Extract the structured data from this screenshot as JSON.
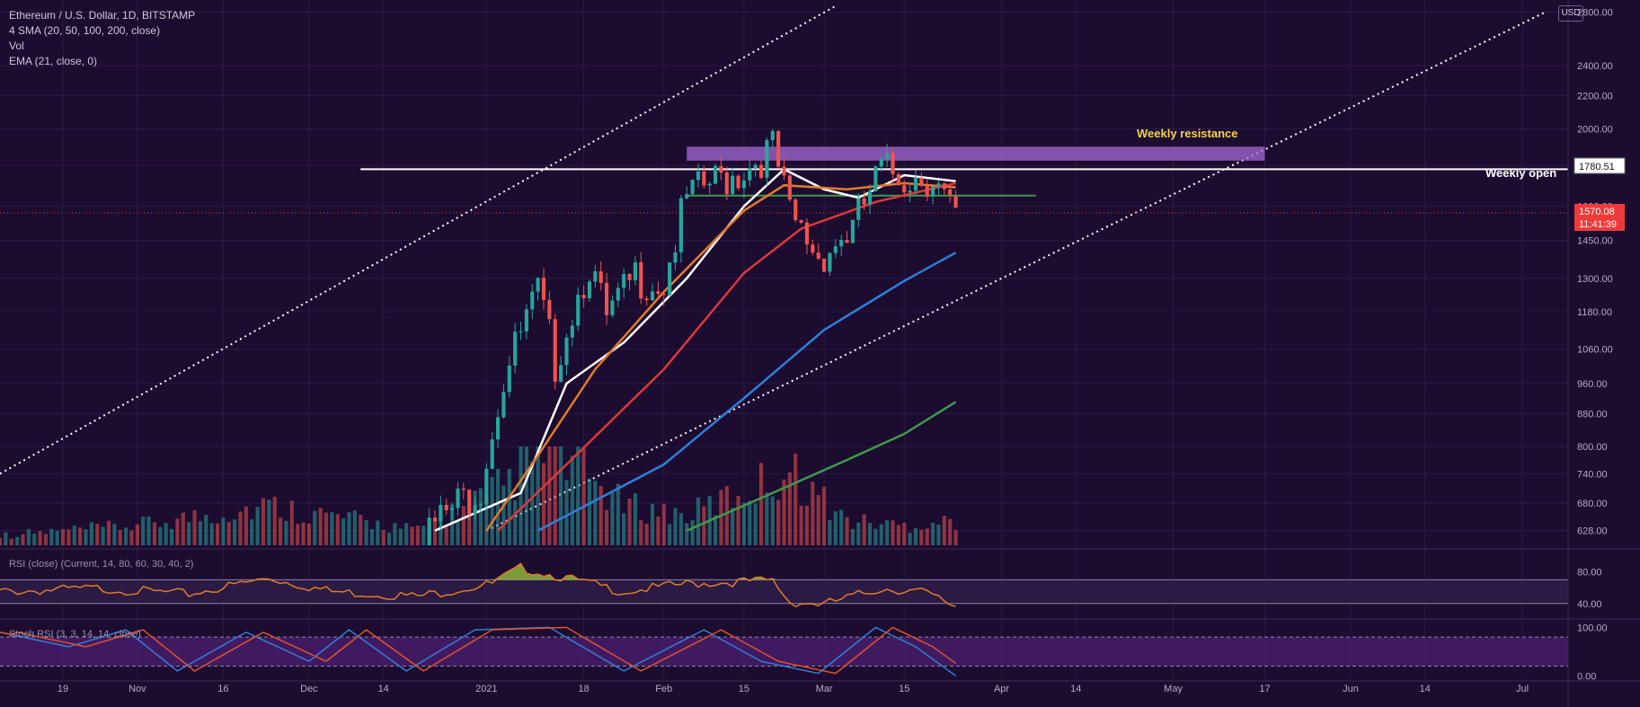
{
  "header": {
    "symbol_line": "Ethereum / U.S. Dollar, 1D, BITSTAMP",
    "ma_line": "4 SMA (20, 50, 100, 200, close)",
    "vol_line": "Vol",
    "ema_line": "EMA (21, close, 0)"
  },
  "currency_badge": "USD",
  "annotations": {
    "weekly_resistance": "Weekly resistance",
    "weekly_open": "Weekly open"
  },
  "price_tags": {
    "weekly_open": "1780.51",
    "last_price": "1570.08",
    "countdown": "11:41:39"
  },
  "indicators": {
    "rsi_label": "RSI (close) (Current, 14, 80, 60, 30, 40, 2)",
    "stoch_label": "Stoch RSI (3, 3, 14, 14, close)"
  },
  "colors": {
    "background": "#1c0c30",
    "up": "#26a69a",
    "down": "#ef5350",
    "sma20": "#ffffff",
    "ema21": "#e07b2a",
    "sma50": "#d93a3a",
    "sma100": "#2f7fd6",
    "sma200": "#3e9a4a",
    "resistance_zone": "#a46ad6",
    "rsi_line": "#e07b2a",
    "rsi_fill": "#8fb43a",
    "stoch_k": "#2f7fd6",
    "stoch_d": "#e0532a"
  },
  "chart_data": {
    "type": "candlestick",
    "price_axis": {
      "scale": "log",
      "ticks": [
        628,
        680,
        740,
        800,
        880,
        960,
        1060,
        1180,
        1300,
        1450,
        1600,
        1800,
        2000,
        2200,
        2400,
        2800
      ],
      "tick_labels": [
        "628.00",
        "680.00",
        "740.00",
        "800.00",
        "880.00",
        "960.00",
        "1060.00",
        "1180.00",
        "1300.00",
        "1450.00",
        "1600.00",
        "1800.00",
        "2000.00",
        "2200.00",
        "2400.00",
        "2800.00"
      ]
    },
    "x_axis": {
      "start_date": "2020-10-08",
      "end_date": "2021-07-09",
      "tick_dates": [
        "2020-10-19",
        "2020-11-01",
        "2020-11-16",
        "2020-12-01",
        "2020-12-14",
        "2021-01-01",
        "2021-01-18",
        "2021-02-01",
        "2021-02-15",
        "2021-03-01",
        "2021-03-15",
        "2021-04-01",
        "2021-04-14",
        "2021-05-01",
        "2021-05-17",
        "2021-06-01",
        "2021-06-14",
        "2021-07-01"
      ],
      "tick_labels": [
        "19",
        "Nov",
        "16",
        "Dec",
        "14",
        "2021",
        "18",
        "Feb",
        "15",
        "Mar",
        "15",
        "Apr",
        "14",
        "May",
        "17",
        "Jun",
        "14",
        "Jul"
      ]
    },
    "resistance_zone": {
      "low": 1825,
      "high": 1900,
      "from": "2021-02-05",
      "to": "2021-05-17"
    },
    "weekly_open": {
      "price": 1780.51,
      "from": "2020-12-10"
    },
    "support_level": {
      "price": 1650,
      "from": "2021-02-05",
      "to": "2021-04-07"
    },
    "last_price": 1570.08,
    "channel_upper": [
      {
        "date": "2020-10-08",
        "price": 740
      },
      {
        "date": "2021-03-03",
        "price": 2850
      }
    ],
    "channel_lower": [
      {
        "date": "2021-01-01",
        "price": 628
      },
      {
        "date": "2021-07-05",
        "price": 2800
      }
    ],
    "price_keypoints": [
      {
        "date": "2020-12-20",
        "price": 628
      },
      {
        "date": "2020-12-31",
        "price": 740
      },
      {
        "date": "2021-01-04",
        "price": 1000
      },
      {
        "date": "2021-01-10",
        "price": 1280
      },
      {
        "date": "2021-01-13",
        "price": 1050
      },
      {
        "date": "2021-01-19",
        "price": 1400
      },
      {
        "date": "2021-01-22",
        "price": 1180
      },
      {
        "date": "2021-01-27",
        "price": 1350
      },
      {
        "date": "2021-02-01",
        "price": 1320
      },
      {
        "date": "2021-02-05",
        "price": 1680
      },
      {
        "date": "2021-02-09",
        "price": 1760
      },
      {
        "date": "2021-02-14",
        "price": 1820
      },
      {
        "date": "2021-02-20",
        "price": 1950
      },
      {
        "date": "2021-02-23",
        "price": 1600
      },
      {
        "date": "2021-02-28",
        "price": 1430
      },
      {
        "date": "2021-03-06",
        "price": 1540
      },
      {
        "date": "2021-03-11",
        "price": 1830
      },
      {
        "date": "2021-03-15",
        "price": 1800
      },
      {
        "date": "2021-03-20",
        "price": 1800
      },
      {
        "date": "2021-03-24",
        "price": 1570
      }
    ],
    "moving_averages": [
      {
        "name": "SMA 20",
        "points": [
          {
            "date": "2020-12-23",
            "price": 628
          },
          {
            "date": "2021-01-07",
            "price": 700
          },
          {
            "date": "2021-01-15",
            "price": 960
          },
          {
            "date": "2021-01-25",
            "price": 1080
          },
          {
            "date": "2021-02-05",
            "price": 1300
          },
          {
            "date": "2021-02-15",
            "price": 1600
          },
          {
            "date": "2021-02-22",
            "price": 1780
          },
          {
            "date": "2021-03-01",
            "price": 1680
          },
          {
            "date": "2021-03-07",
            "price": 1640
          },
          {
            "date": "2021-03-15",
            "price": 1750
          },
          {
            "date": "2021-03-24",
            "price": 1720
          }
        ]
      },
      {
        "name": "EMA 21",
        "points": [
          {
            "date": "2021-01-01",
            "price": 628
          },
          {
            "date": "2021-01-10",
            "price": 780
          },
          {
            "date": "2021-01-20",
            "price": 1000
          },
          {
            "date": "2021-02-01",
            "price": 1250
          },
          {
            "date": "2021-02-15",
            "price": 1580
          },
          {
            "date": "2021-02-22",
            "price": 1700
          },
          {
            "date": "2021-03-05",
            "price": 1680
          },
          {
            "date": "2021-03-15",
            "price": 1710
          },
          {
            "date": "2021-03-24",
            "price": 1690
          }
        ]
      },
      {
        "name": "SMA 50",
        "points": [
          {
            "date": "2021-01-03",
            "price": 628
          },
          {
            "date": "2021-01-15",
            "price": 760
          },
          {
            "date": "2021-02-01",
            "price": 1000
          },
          {
            "date": "2021-02-15",
            "price": 1320
          },
          {
            "date": "2021-02-25",
            "price": 1500
          },
          {
            "date": "2021-03-10",
            "price": 1620
          },
          {
            "date": "2021-03-24",
            "price": 1710
          }
        ]
      },
      {
        "name": "SMA 100",
        "points": [
          {
            "date": "2021-01-10",
            "price": 628
          },
          {
            "date": "2021-02-01",
            "price": 760
          },
          {
            "date": "2021-02-15",
            "price": 920
          },
          {
            "date": "2021-03-01",
            "price": 1120
          },
          {
            "date": "2021-03-15",
            "price": 1290
          },
          {
            "date": "2021-03-24",
            "price": 1400
          }
        ]
      },
      {
        "name": "SMA 200",
        "points": [
          {
            "date": "2021-02-05",
            "price": 628
          },
          {
            "date": "2021-02-20",
            "price": 700
          },
          {
            "date": "2021-03-05",
            "price": 770
          },
          {
            "date": "2021-03-15",
            "price": 830
          },
          {
            "date": "2021-03-24",
            "price": 910
          }
        ]
      }
    ],
    "rsi": {
      "ticks": [
        40,
        80
      ],
      "tick_labels": [
        "40.00",
        "80.00"
      ],
      "band": [
        40,
        70
      ],
      "keypoints": [
        {
          "date": "2020-10-08",
          "value": 58
        },
        {
          "date": "2020-10-25",
          "value": 62
        },
        {
          "date": "2020-11-10",
          "value": 55
        },
        {
          "date": "2020-11-24",
          "value": 75
        },
        {
          "date": "2020-12-05",
          "value": 58
        },
        {
          "date": "2020-12-20",
          "value": 52
        },
        {
          "date": "2021-01-02",
          "value": 68
        },
        {
          "date": "2021-01-07",
          "value": 88
        },
        {
          "date": "2021-01-12",
          "value": 80
        },
        {
          "date": "2021-01-18",
          "value": 70
        },
        {
          "date": "2021-01-25",
          "value": 58
        },
        {
          "date": "2021-02-05",
          "value": 68
        },
        {
          "date": "2021-02-20",
          "value": 72
        },
        {
          "date": "2021-02-23",
          "value": 45
        },
        {
          "date": "2021-03-01",
          "value": 42
        },
        {
          "date": "2021-03-11",
          "value": 62
        },
        {
          "date": "2021-03-18",
          "value": 58
        },
        {
          "date": "2021-03-24",
          "value": 40
        }
      ]
    },
    "stoch_rsi": {
      "ticks": [
        0,
        100
      ],
      "tick_labels": [
        "0.00",
        "100.00"
      ],
      "band": [
        20,
        80
      ],
      "k_keypoints": [
        {
          "date": "2020-10-08",
          "value": 90
        },
        {
          "date": "2020-10-20",
          "value": 60
        },
        {
          "date": "2020-10-30",
          "value": 95
        },
        {
          "date": "2020-11-08",
          "value": 10
        },
        {
          "date": "2020-11-20",
          "value": 90
        },
        {
          "date": "2020-12-01",
          "value": 30
        },
        {
          "date": "2020-12-08",
          "value": 95
        },
        {
          "date": "2020-12-18",
          "value": 10
        },
        {
          "date": "2020-12-30",
          "value": 95
        },
        {
          "date": "2021-01-12",
          "value": 100
        },
        {
          "date": "2021-01-25",
          "value": 10
        },
        {
          "date": "2021-02-08",
          "value": 95
        },
        {
          "date": "2021-02-18",
          "value": 30
        },
        {
          "date": "2021-02-28",
          "value": 5
        },
        {
          "date": "2021-03-10",
          "value": 100
        },
        {
          "date": "2021-03-17",
          "value": 60
        },
        {
          "date": "2021-03-24",
          "value": 0
        }
      ]
    },
    "volume_keypoints": [
      {
        "date": "2020-10-08",
        "value": 0.1
      },
      {
        "date": "2020-11-01",
        "value": 0.2
      },
      {
        "date": "2020-11-24",
        "value": 0.4
      },
      {
        "date": "2020-12-20",
        "value": 0.15
      },
      {
        "date": "2021-01-04",
        "value": 0.6
      },
      {
        "date": "2021-01-12",
        "value": 1.0
      },
      {
        "date": "2021-01-25",
        "value": 0.4
      },
      {
        "date": "2021-02-05",
        "value": 0.3
      },
      {
        "date": "2021-02-23",
        "value": 0.75
      },
      {
        "date": "2021-03-05",
        "value": 0.25
      },
      {
        "date": "2021-03-15",
        "value": 0.2
      },
      {
        "date": "2021-03-24",
        "value": 0.25
      }
    ]
  }
}
